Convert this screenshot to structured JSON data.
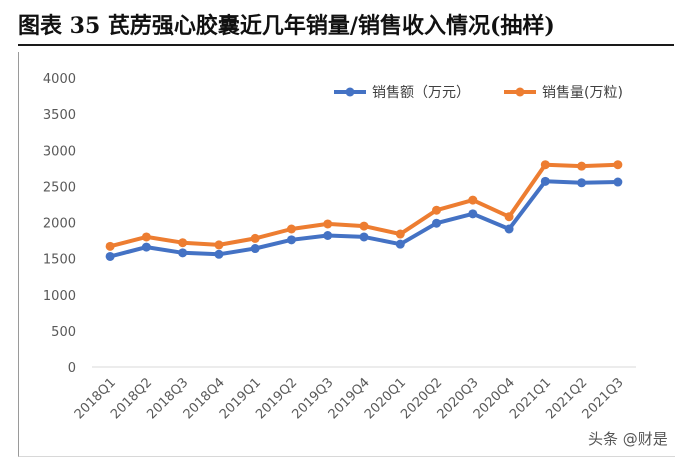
{
  "header": {
    "title": "图表 35  芪苈强心胶囊近几年销量/销售收入情况(抽样)"
  },
  "watermark": "头条 @财是",
  "chart_data": {
    "type": "line",
    "categories": [
      "2018Q1",
      "2018Q2",
      "2018Q3",
      "2018Q4",
      "2019Q1",
      "2019Q2",
      "2019Q3",
      "2019Q4",
      "2020Q1",
      "2020Q2",
      "2020Q3",
      "2020Q4",
      "2021Q1",
      "2021Q2",
      "2021Q3"
    ],
    "series": [
      {
        "name": "销售额（万元）",
        "color": "#4472c4",
        "values": [
          1530,
          1660,
          1580,
          1560,
          1640,
          1760,
          1820,
          1800,
          1700,
          1990,
          2120,
          1910,
          2570,
          2550,
          2560
        ]
      },
      {
        "name": "销售量(万粒)",
        "color": "#ed7d31",
        "values": [
          1670,
          1800,
          1720,
          1690,
          1780,
          1910,
          1980,
          1950,
          1840,
          2170,
          2310,
          2080,
          2800,
          2780,
          2800
        ]
      }
    ],
    "ylim": [
      0,
      4000
    ],
    "yticks": [
      0,
      500,
      1000,
      1500,
      2000,
      2500,
      3000,
      3500,
      4000
    ],
    "grid": false,
    "legend_position": "top-right"
  }
}
